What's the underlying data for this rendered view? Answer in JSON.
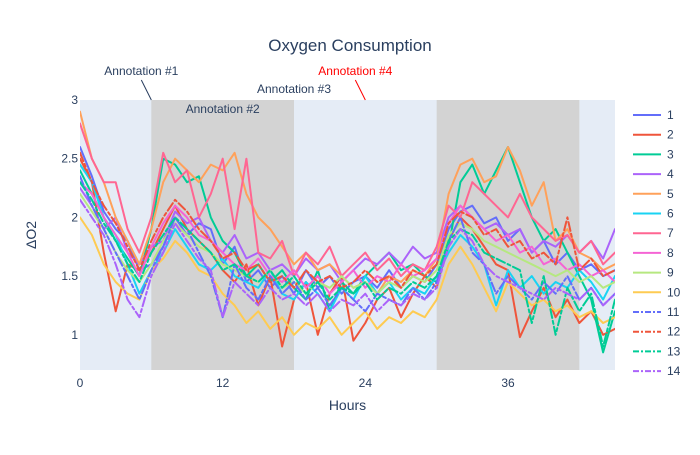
{
  "chart_data": {
    "type": "line",
    "title": "Oxygen Consumption",
    "xlabel": "Hours",
    "ylabel": "ΔO2",
    "xlim": [
      0,
      45
    ],
    "ylim": [
      0.7,
      3.0
    ],
    "x_ticks": [
      0,
      12,
      24,
      36
    ],
    "y_ticks": [
      1,
      1.5,
      2,
      2.5,
      3
    ],
    "grid": false,
    "plot_background": "#e5ecf6",
    "shaded_regions": [
      {
        "x0": 6,
        "x1": 18,
        "color": "#d3d3d3"
      },
      {
        "x0": 30,
        "x1": 42,
        "color": "#d3d3d3"
      }
    ],
    "annotations": [
      {
        "text": "Annotation #1",
        "x": 6,
        "y": 3.0,
        "color": "#2a3f5f",
        "arrow": true
      },
      {
        "text": "Annotation #2",
        "x": 12,
        "y": 3.0,
        "color": "#2a3f5f",
        "arrow": false
      },
      {
        "text": "Annotation #3",
        "x": 18,
        "y": 3.0,
        "color": "#2a3f5f",
        "arrow": false
      },
      {
        "text": "Annotation #4",
        "x": 24,
        "y": 3.0,
        "color": "#ff0000",
        "arrow": true
      }
    ],
    "legend_position": "right",
    "x": [
      0,
      1,
      2,
      3,
      4,
      5,
      6,
      7,
      8,
      9,
      10,
      11,
      12,
      13,
      14,
      15,
      16,
      17,
      18,
      19,
      20,
      21,
      22,
      23,
      24,
      25,
      26,
      27,
      28,
      29,
      30,
      31,
      32,
      33,
      34,
      35,
      36,
      37,
      38,
      39,
      40,
      41,
      42,
      43,
      44,
      45
    ],
    "series": [
      {
        "name": "1",
        "color": "#636efa",
        "dash": "solid",
        "values": [
          2.6,
          2.35,
          2.05,
          1.9,
          1.8,
          1.55,
          1.6,
          1.75,
          2.0,
          1.85,
          1.95,
          1.9,
          1.6,
          1.75,
          1.45,
          1.55,
          1.4,
          1.5,
          1.35,
          1.55,
          1.4,
          1.5,
          1.35,
          1.45,
          1.5,
          1.4,
          1.55,
          1.4,
          1.5,
          1.45,
          1.6,
          1.9,
          2.05,
          2.1,
          1.95,
          2.0,
          1.8,
          1.9,
          1.7,
          1.8,
          1.6,
          1.7,
          1.55,
          1.6,
          1.5,
          1.55
        ]
      },
      {
        "name": "2",
        "color": "#ef553b",
        "dash": "solid",
        "values": [
          2.5,
          2.3,
          1.7,
          1.2,
          1.6,
          1.55,
          1.7,
          1.9,
          2.1,
          1.9,
          1.8,
          1.7,
          1.55,
          1.45,
          1.6,
          1.25,
          1.5,
          0.9,
          1.3,
          1.45,
          1.0,
          1.35,
          1.5,
          0.95,
          1.1,
          1.3,
          1.4,
          1.15,
          1.35,
          1.5,
          1.4,
          1.8,
          2.0,
          1.9,
          1.75,
          1.6,
          1.55,
          0.98,
          1.2,
          1.4,
          1.15,
          1.3,
          1.1,
          1.2,
          1.0,
          1.05
        ]
      },
      {
        "name": "3",
        "color": "#00cc96",
        "dash": "solid",
        "values": [
          2.4,
          2.2,
          2.0,
          1.8,
          1.65,
          1.5,
          1.9,
          2.5,
          2.45,
          2.3,
          2.35,
          2.0,
          1.8,
          1.7,
          1.5,
          1.6,
          1.45,
          1.55,
          1.4,
          1.3,
          1.55,
          1.2,
          1.45,
          1.35,
          1.5,
          1.6,
          1.7,
          1.55,
          1.6,
          1.5,
          1.45,
          1.75,
          2.3,
          2.45,
          2.2,
          2.4,
          2.6,
          2.3,
          2.0,
          1.8,
          1.9,
          1.7,
          1.5,
          1.3,
          0.85,
          1.2
        ]
      },
      {
        "name": "4",
        "color": "#ab63fa",
        "dash": "solid",
        "values": [
          2.25,
          2.1,
          1.9,
          2.0,
          1.7,
          1.6,
          1.75,
          1.8,
          2.05,
          1.95,
          2.0,
          1.8,
          1.7,
          1.85,
          1.65,
          1.7,
          1.55,
          1.6,
          1.5,
          1.65,
          1.55,
          1.6,
          1.45,
          1.55,
          1.65,
          1.6,
          1.7,
          1.6,
          1.75,
          1.65,
          1.7,
          2.0,
          2.1,
          2.0,
          1.9,
          1.95,
          1.85,
          1.9,
          1.7,
          1.8,
          1.75,
          1.85,
          1.7,
          1.8,
          1.65,
          1.9
        ]
      },
      {
        "name": "5",
        "color": "#ffa15a",
        "dash": "solid",
        "values": [
          2.9,
          2.5,
          2.3,
          2.0,
          1.8,
          1.6,
          1.9,
          2.3,
          2.5,
          2.4,
          2.3,
          2.45,
          2.4,
          2.55,
          2.2,
          2.0,
          1.9,
          1.75,
          1.6,
          1.7,
          1.55,
          1.6,
          1.5,
          1.4,
          1.45,
          1.35,
          1.5,
          1.45,
          1.55,
          1.5,
          1.65,
          2.2,
          2.45,
          2.5,
          2.3,
          2.35,
          2.6,
          2.4,
          2.1,
          2.3,
          1.8,
          1.9,
          1.7,
          1.65,
          1.55,
          1.6
        ]
      },
      {
        "name": "6",
        "color": "#19d3f3",
        "dash": "solid",
        "values": [
          2.45,
          2.3,
          2.0,
          1.85,
          1.6,
          1.35,
          1.55,
          1.7,
          1.9,
          1.75,
          1.6,
          1.55,
          1.65,
          1.5,
          1.45,
          1.4,
          1.55,
          1.35,
          1.3,
          1.45,
          1.35,
          1.2,
          1.4,
          1.3,
          1.5,
          1.35,
          1.45,
          1.3,
          1.4,
          1.35,
          1.5,
          1.7,
          1.85,
          1.75,
          1.6,
          1.25,
          1.55,
          1.4,
          1.5,
          1.35,
          1.45,
          1.4,
          1.55,
          1.45,
          1.3,
          1.5
        ]
      },
      {
        "name": "7",
        "color": "#ff6692",
        "dash": "solid",
        "values": [
          2.8,
          2.5,
          2.3,
          2.3,
          1.9,
          1.7,
          2.0,
          2.55,
          2.3,
          2.4,
          2.0,
          2.2,
          2.5,
          1.9,
          2.5,
          1.7,
          1.65,
          1.8,
          1.5,
          1.7,
          1.6,
          1.75,
          1.5,
          1.6,
          1.7,
          1.55,
          1.65,
          1.5,
          1.6,
          1.55,
          1.75,
          2.1,
          2.0,
          2.3,
          2.2,
          2.1,
          2.0,
          2.2,
          2.0,
          1.9,
          1.8,
          1.85,
          1.7,
          1.8,
          1.6,
          1.7
        ]
      },
      {
        "name": "8",
        "color": "#f564d4",
        "dash": "solid",
        "values": [
          2.3,
          2.2,
          2.0,
          1.85,
          1.7,
          1.5,
          1.75,
          1.95,
          2.1,
          2.0,
          1.85,
          1.8,
          1.7,
          1.6,
          1.55,
          1.65,
          1.5,
          1.45,
          1.55,
          1.4,
          1.5,
          1.35,
          1.45,
          1.55,
          1.4,
          1.5,
          1.45,
          1.6,
          1.5,
          1.55,
          1.65,
          1.95,
          2.1,
          2.0,
          1.9,
          1.8,
          1.85,
          1.7,
          1.75,
          1.6,
          1.65,
          1.55,
          1.6,
          1.5,
          1.55,
          1.45
        ]
      },
      {
        "name": "9",
        "color": "#b6e880",
        "dash": "solid",
        "values": [
          2.2,
          2.05,
          1.9,
          1.7,
          1.55,
          1.45,
          1.6,
          1.8,
          1.95,
          1.85,
          1.75,
          1.7,
          1.6,
          1.55,
          1.5,
          1.45,
          1.55,
          1.4,
          1.45,
          1.35,
          1.45,
          1.4,
          1.5,
          1.4,
          1.45,
          1.35,
          1.45,
          1.4,
          1.5,
          1.45,
          1.55,
          1.85,
          1.95,
          1.9,
          1.8,
          1.75,
          1.7,
          1.65,
          1.6,
          1.55,
          1.5,
          1.55,
          1.45,
          1.5,
          1.4,
          1.45
        ]
      },
      {
        "name": "10",
        "color": "#fecb52",
        "dash": "solid",
        "values": [
          2.0,
          1.85,
          1.6,
          1.45,
          1.35,
          1.3,
          1.55,
          1.65,
          1.8,
          1.7,
          1.55,
          1.5,
          1.35,
          1.25,
          1.1,
          1.2,
          1.05,
          1.15,
          1.0,
          1.1,
          1.05,
          1.15,
          1.0,
          1.1,
          1.2,
          1.05,
          1.15,
          1.1,
          1.2,
          1.15,
          1.3,
          1.6,
          1.75,
          1.6,
          1.4,
          1.2,
          1.45,
          1.35,
          1.25,
          1.3,
          1.2,
          1.25,
          1.15,
          1.2,
          1.1,
          1.15
        ]
      },
      {
        "name": "11",
        "color": "#636efa",
        "dash": "dashdot",
        "values": [
          2.35,
          2.1,
          1.9,
          1.7,
          1.5,
          1.3,
          1.55,
          1.75,
          2.0,
          1.9,
          1.7,
          1.5,
          1.15,
          1.6,
          1.4,
          1.3,
          1.5,
          1.35,
          1.45,
          1.3,
          1.4,
          1.25,
          1.4,
          1.3,
          1.2,
          1.35,
          1.3,
          1.25,
          1.4,
          1.3,
          1.45,
          1.8,
          2.0,
          1.7,
          1.6,
          1.35,
          1.5,
          1.4,
          1.3,
          1.45,
          1.35,
          1.5,
          1.3,
          1.4,
          1.25,
          1.35
        ]
      },
      {
        "name": "12",
        "color": "#ef553b",
        "dash": "dashdot",
        "values": [
          2.55,
          2.3,
          2.1,
          1.95,
          1.75,
          1.55,
          1.8,
          2.0,
          2.15,
          2.05,
          1.9,
          1.8,
          1.65,
          1.7,
          1.55,
          1.6,
          1.45,
          1.5,
          1.4,
          1.55,
          1.45,
          1.5,
          1.4,
          1.45,
          1.55,
          1.45,
          1.5,
          1.4,
          1.55,
          1.5,
          1.6,
          1.95,
          2.05,
          2.0,
          1.85,
          1.9,
          1.75,
          1.8,
          1.65,
          1.7,
          1.6,
          2.0,
          1.55,
          1.65,
          1.5,
          1.55
        ]
      },
      {
        "name": "13",
        "color": "#00cc96",
        "dash": "dashdot",
        "values": [
          2.3,
          2.15,
          1.95,
          1.8,
          1.6,
          1.45,
          1.7,
          1.85,
          2.0,
          1.9,
          1.8,
          1.7,
          1.55,
          1.6,
          1.5,
          1.45,
          1.55,
          1.4,
          1.5,
          1.35,
          1.45,
          1.3,
          1.4,
          1.35,
          1.45,
          1.3,
          1.4,
          1.35,
          1.45,
          1.4,
          1.5,
          1.8,
          1.9,
          1.85,
          1.7,
          1.65,
          1.6,
          1.55,
          1.1,
          1.5,
          1.0,
          1.4,
          1.2,
          1.35,
          0.9,
          1.3
        ]
      },
      {
        "name": "14",
        "color": "#ab63fa",
        "dash": "dashdot",
        "values": [
          2.15,
          2.0,
          1.85,
          1.6,
          1.3,
          1.15,
          1.5,
          1.7,
          1.95,
          1.8,
          1.65,
          1.55,
          1.15,
          1.45,
          1.35,
          1.25,
          1.4,
          1.3,
          1.35,
          1.25,
          1.35,
          1.2,
          1.3,
          1.25,
          1.35,
          1.2,
          1.3,
          1.25,
          1.35,
          1.3,
          1.4,
          1.75,
          1.9,
          1.8,
          1.6,
          1.5,
          1.45,
          1.4,
          1.35,
          1.3,
          1.4,
          1.35,
          1.3,
          1.4,
          1.25,
          1.35
        ]
      }
    ]
  }
}
